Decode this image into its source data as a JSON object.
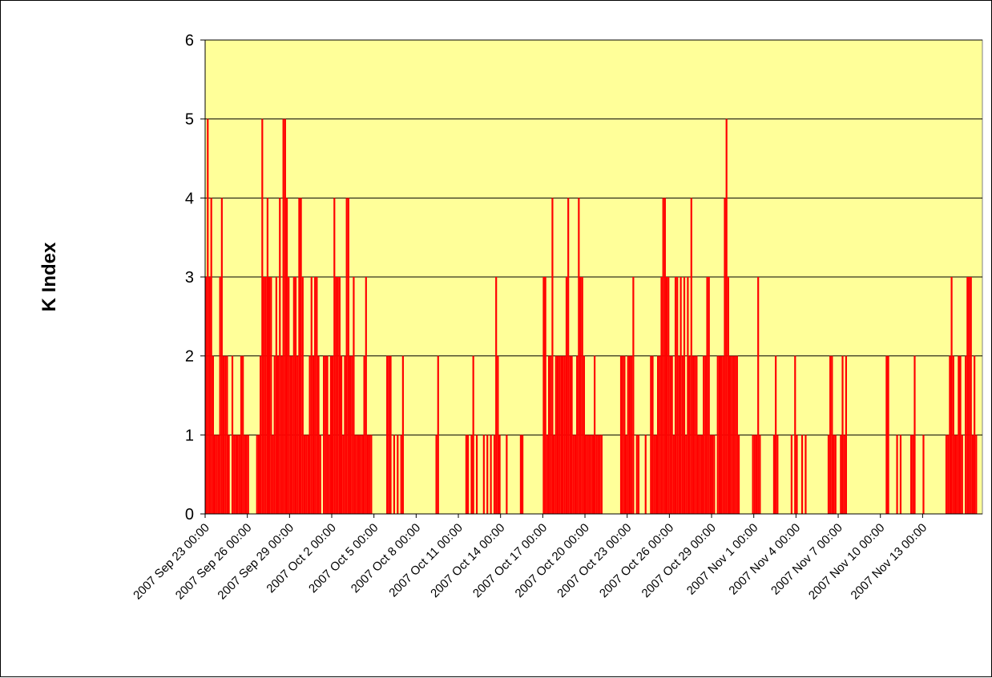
{
  "chart_data": {
    "type": "bar",
    "title": "",
    "xlabel": "",
    "ylabel": "K Index",
    "ylim": [
      0,
      6
    ],
    "yticks": [
      0,
      1,
      2,
      3,
      4,
      5,
      6
    ],
    "grid": true,
    "legend": "none",
    "colors": {
      "bar": "#ff0000",
      "plot_background": "#ffff99",
      "gridline": "#000000"
    },
    "x_start": "2007 Sep 23 00:00",
    "x_end": "2007 Nov 15 21:00",
    "interval": "3 hours",
    "xtick_labels": [
      "2007 Sep 23 00:00",
      "2007 Sep 26 00:00",
      "2007 Sep 29 00:00",
      "2007 Oct 2 00:00",
      "2007 Oct 5 00:00",
      "2007 Oct 8 00:00",
      "2007 Oct 11 00:00",
      "2007 Oct 14 00:00",
      "2007 Oct 17 00:00",
      "2007 Oct 20 00:00",
      "2007 Oct 23 00:00",
      "2007 Oct 26 00:00",
      "2007 Oct 29 00:00",
      "2007 Nov 1 00:00",
      "2007 Nov 4 00:00",
      "2007 Nov 7 00:00",
      "2007 Nov 10 00:00",
      "2007 Nov 13 00:00"
    ],
    "series": [
      {
        "values": [
          3,
          5,
          3,
          4,
          2,
          1,
          1,
          1,
          3,
          4,
          2,
          2,
          2,
          1,
          0,
          2,
          1,
          1,
          1,
          1,
          2,
          2,
          1,
          1,
          1,
          0,
          0,
          0,
          0,
          1,
          1,
          2,
          5,
          3,
          3,
          4,
          3,
          3,
          1,
          2,
          3,
          2,
          4,
          2,
          5,
          5,
          4,
          3,
          2,
          2,
          3,
          3,
          2,
          4,
          4,
          3,
          1,
          1,
          1,
          2,
          3,
          2,
          3,
          3,
          2,
          1,
          0,
          2,
          2,
          2,
          1,
          2,
          2,
          4,
          3,
          3,
          3,
          2,
          1,
          2,
          4,
          4,
          2,
          2,
          3,
          1,
          1,
          1,
          1,
          1,
          2,
          3,
          1,
          1,
          1,
          0,
          0,
          0,
          0,
          0,
          0,
          0,
          0,
          2,
          2,
          2,
          0,
          1,
          0,
          1,
          0,
          1,
          2,
          0,
          0,
          0,
          0,
          0,
          0,
          0,
          0,
          0,
          0,
          0,
          0,
          0,
          0,
          0,
          0,
          0,
          0,
          1,
          2,
          0,
          0,
          0,
          0,
          0,
          0,
          0,
          0,
          0,
          0,
          0,
          0,
          0,
          0,
          0,
          1,
          1,
          0,
          1,
          2,
          0,
          1,
          0,
          0,
          0,
          1,
          0,
          1,
          0,
          1,
          0,
          1,
          3,
          2,
          1,
          0,
          0,
          0,
          1,
          0,
          0,
          0,
          0,
          0,
          0,
          0,
          1,
          1,
          0,
          0,
          0,
          0,
          0,
          0,
          0,
          0,
          0,
          0,
          0,
          3,
          3,
          1,
          2,
          2,
          4,
          1,
          2,
          2,
          2,
          2,
          2,
          2,
          3,
          4,
          2,
          2,
          1,
          1,
          2,
          4,
          3,
          3,
          2,
          1,
          1,
          1,
          1,
          1,
          2,
          1,
          1,
          1,
          1,
          0,
          0,
          0,
          0,
          0,
          0,
          0,
          0,
          0,
          0,
          2,
          2,
          2,
          1,
          2,
          2,
          2,
          3,
          0,
          1,
          1,
          0,
          0,
          0,
          1,
          0,
          0,
          2,
          2,
          1,
          1,
          2,
          2,
          3,
          4,
          4,
          3,
          3,
          2,
          2,
          1,
          3,
          3,
          2,
          3,
          2,
          3,
          1,
          3,
          2,
          4,
          2,
          2,
          2,
          1,
          1,
          1,
          2,
          2,
          3,
          3,
          1,
          1,
          1,
          0,
          2,
          2,
          2,
          2,
          4,
          5,
          3,
          2,
          2,
          2,
          2,
          2,
          1,
          0,
          0,
          0,
          0,
          0,
          0,
          0,
          1,
          1,
          1,
          3,
          1,
          0,
          0,
          0,
          0,
          0,
          0,
          0,
          1,
          2,
          1,
          0,
          0,
          0,
          0,
          0,
          0,
          0,
          1,
          0,
          2,
          1,
          0,
          0,
          1,
          0,
          1,
          0,
          0,
          0,
          0,
          0,
          0,
          0,
          0,
          0,
          0,
          0,
          0,
          1,
          2,
          2,
          1,
          1,
          0,
          0,
          1,
          2,
          1,
          2,
          0,
          0,
          0,
          0,
          0,
          0,
          0,
          0,
          0,
          0,
          0,
          0,
          0,
          0,
          0,
          0,
          0,
          0,
          0,
          0,
          0,
          0,
          2,
          2,
          0,
          0,
          0,
          0,
          1,
          0,
          1,
          0,
          0,
          0,
          0,
          0,
          1,
          1,
          2,
          0,
          0,
          0,
          0,
          1,
          0,
          0,
          0,
          0,
          0,
          0,
          0,
          0,
          0,
          0,
          0,
          0,
          1,
          1,
          2,
          3,
          2,
          1,
          1,
          2,
          2,
          1,
          0,
          2,
          3,
          3,
          3,
          1,
          2,
          1,
          0,
          0,
          0
        ]
      }
    ]
  }
}
